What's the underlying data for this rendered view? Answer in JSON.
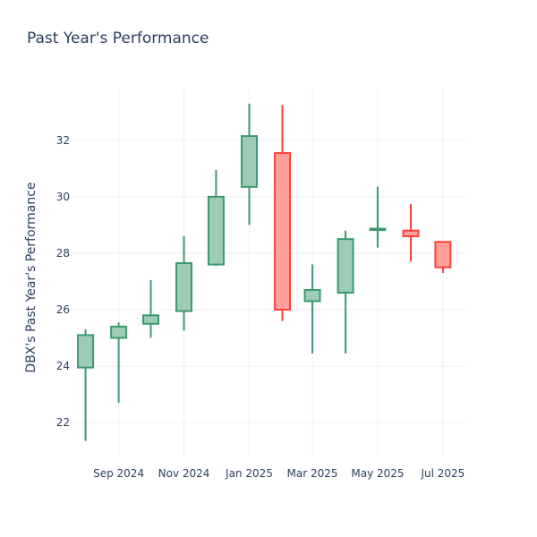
{
  "chart_data": {
    "type": "candlestick",
    "title": "Past Year's Performance",
    "ylabel": "DBX's Past Year's Performance",
    "xlabel": "",
    "x_tick_labels": [
      "Sep 2024",
      "Nov 2024",
      "Jan 2025",
      "Mar 2025",
      "May 2025",
      "Jul 2025"
    ],
    "x_tick_dates": [
      "2024-09-01",
      "2024-11-01",
      "2025-01-01",
      "2025-03-01",
      "2025-05-01",
      "2025-07-01"
    ],
    "y_ticks": [
      22,
      24,
      26,
      28,
      30,
      32
    ],
    "ylim": [
      20.8,
      33.8
    ],
    "xlim": [
      "2024-07-19",
      "2025-07-22"
    ],
    "grid": true,
    "increasing_color": "#3d9970",
    "increasing_fill": "#9ecbb4",
    "decreasing_color": "#ff4136",
    "decreasing_fill": "#ff9f9a",
    "candles": [
      {
        "date": "2024-08-01",
        "open": 23.95,
        "high": 25.3,
        "low": 21.35,
        "close": 25.1
      },
      {
        "date": "2024-09-01",
        "open": 25.0,
        "high": 25.55,
        "low": 22.7,
        "close": 25.4
      },
      {
        "date": "2024-10-01",
        "open": 25.5,
        "high": 27.05,
        "low": 25.0,
        "close": 25.8
      },
      {
        "date": "2024-11-01",
        "open": 25.95,
        "high": 28.6,
        "low": 25.25,
        "close": 27.65
      },
      {
        "date": "2024-12-01",
        "open": 27.6,
        "high": 30.95,
        "low": 27.55,
        "close": 30.0
      },
      {
        "date": "2025-01-01",
        "open": 30.35,
        "high": 33.3,
        "low": 29.0,
        "close": 32.15
      },
      {
        "date": "2025-02-01",
        "open": 31.55,
        "high": 33.25,
        "low": 25.6,
        "close": 26.0
      },
      {
        "date": "2025-03-01",
        "open": 26.3,
        "high": 27.6,
        "low": 24.45,
        "close": 26.7
      },
      {
        "date": "2025-04-01",
        "open": 26.6,
        "high": 28.8,
        "low": 24.45,
        "close": 28.5
      },
      {
        "date": "2025-05-01",
        "open": 28.82,
        "high": 30.35,
        "low": 28.2,
        "close": 28.87
      },
      {
        "date": "2025-06-01",
        "open": 28.8,
        "high": 29.75,
        "low": 27.7,
        "close": 28.6
      },
      {
        "date": "2025-07-01",
        "open": 28.4,
        "high": 28.4,
        "low": 27.3,
        "close": 27.5
      }
    ]
  }
}
